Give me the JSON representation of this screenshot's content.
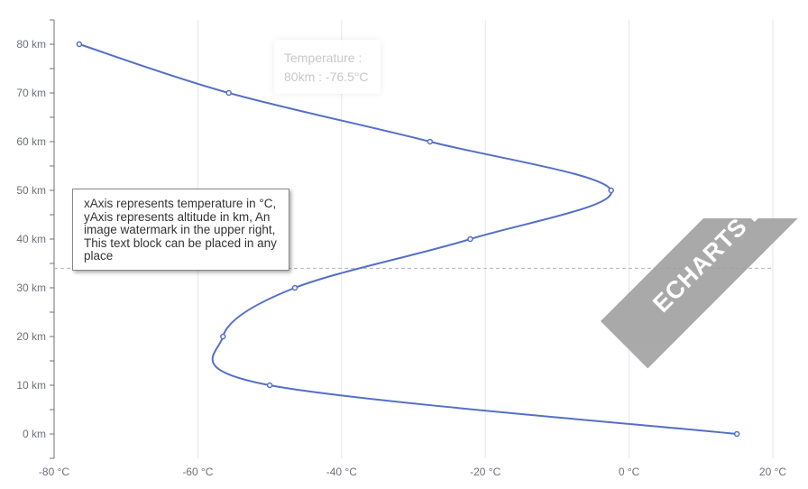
{
  "chart_data": {
    "type": "line",
    "xlabel": "",
    "ylabel": "",
    "x_unit": "°C",
    "y_unit": "km",
    "xlim": [
      -80,
      20
    ],
    "ylim": [
      -5,
      85
    ],
    "x_ticks": [
      "-80 °C",
      "-60 °C",
      "-40 °C",
      "-20 °C",
      "0 °C",
      "20 °C"
    ],
    "y_ticks": [
      "0 km",
      "10 km",
      "20 km",
      "30 km",
      "40 km",
      "50 km",
      "60 km",
      "70 km",
      "80 km"
    ],
    "smooth": true,
    "grid": {
      "vertical": true,
      "horizontal": false
    },
    "series": [
      {
        "name": "Temperature",
        "color": "#5470c6",
        "points": [
          {
            "altitude": 0,
            "temperature": 15
          },
          {
            "altitude": 10,
            "temperature": -50
          },
          {
            "altitude": 20,
            "temperature": -56.5
          },
          {
            "altitude": 30,
            "temperature": -46.5
          },
          {
            "altitude": 40,
            "temperature": -22.1
          },
          {
            "altitude": 50,
            "temperature": -2.5
          },
          {
            "altitude": 60,
            "temperature": -27.7
          },
          {
            "altitude": 70,
            "temperature": -55.7
          },
          {
            "altitude": 80,
            "temperature": -76.5
          }
        ]
      }
    ],
    "axis_pointer_altitude": 34
  },
  "tooltip": {
    "title": "Temperature :",
    "value": "80km : -76.5°C"
  },
  "note": {
    "text": "xAxis represents temperature in °C, yAxis represents altitude in km, An image watermark in the upper right, This text block can be placed in any place"
  },
  "watermark": {
    "text": "ECHARTS LINE CHART"
  }
}
